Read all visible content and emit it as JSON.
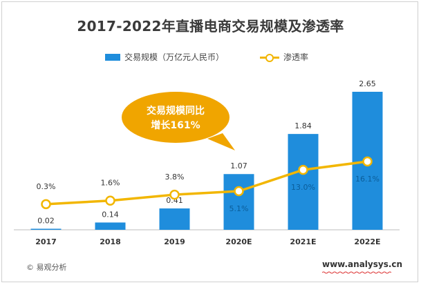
{
  "chart_data": {
    "type": "bar",
    "title": "2017-2022年直播电商交易规模及渗透率",
    "categories": [
      "2017",
      "2018",
      "2019",
      "2020E",
      "2021E",
      "2022E"
    ],
    "series": [
      {
        "name": "交易规模（万亿元人民币）",
        "kind": "bar",
        "values": [
          0.02,
          0.14,
          0.41,
          1.07,
          1.84,
          2.65
        ],
        "labels": [
          "0.02",
          "0.14",
          "0.41",
          "1.07",
          "1.84",
          "2.65"
        ],
        "color": "#1f8ddc"
      },
      {
        "name": "渗透率",
        "kind": "line",
        "values": [
          0.3,
          1.6,
          3.8,
          5.1,
          13.0,
          16.1
        ],
        "labels": [
          "0.3%",
          "1.6%",
          "3.8%",
          "5.1%",
          "13.0%",
          "16.1%"
        ],
        "color": "#f2b600"
      }
    ],
    "grid": false,
    "legend_position": "top",
    "annotation": {
      "lines": [
        "交易规模同比",
        "增长161%"
      ],
      "color": "#f0a500"
    }
  },
  "footer": {
    "source": "易观分析",
    "copyright_symbol": "©",
    "website": "www.analysys.cn"
  }
}
